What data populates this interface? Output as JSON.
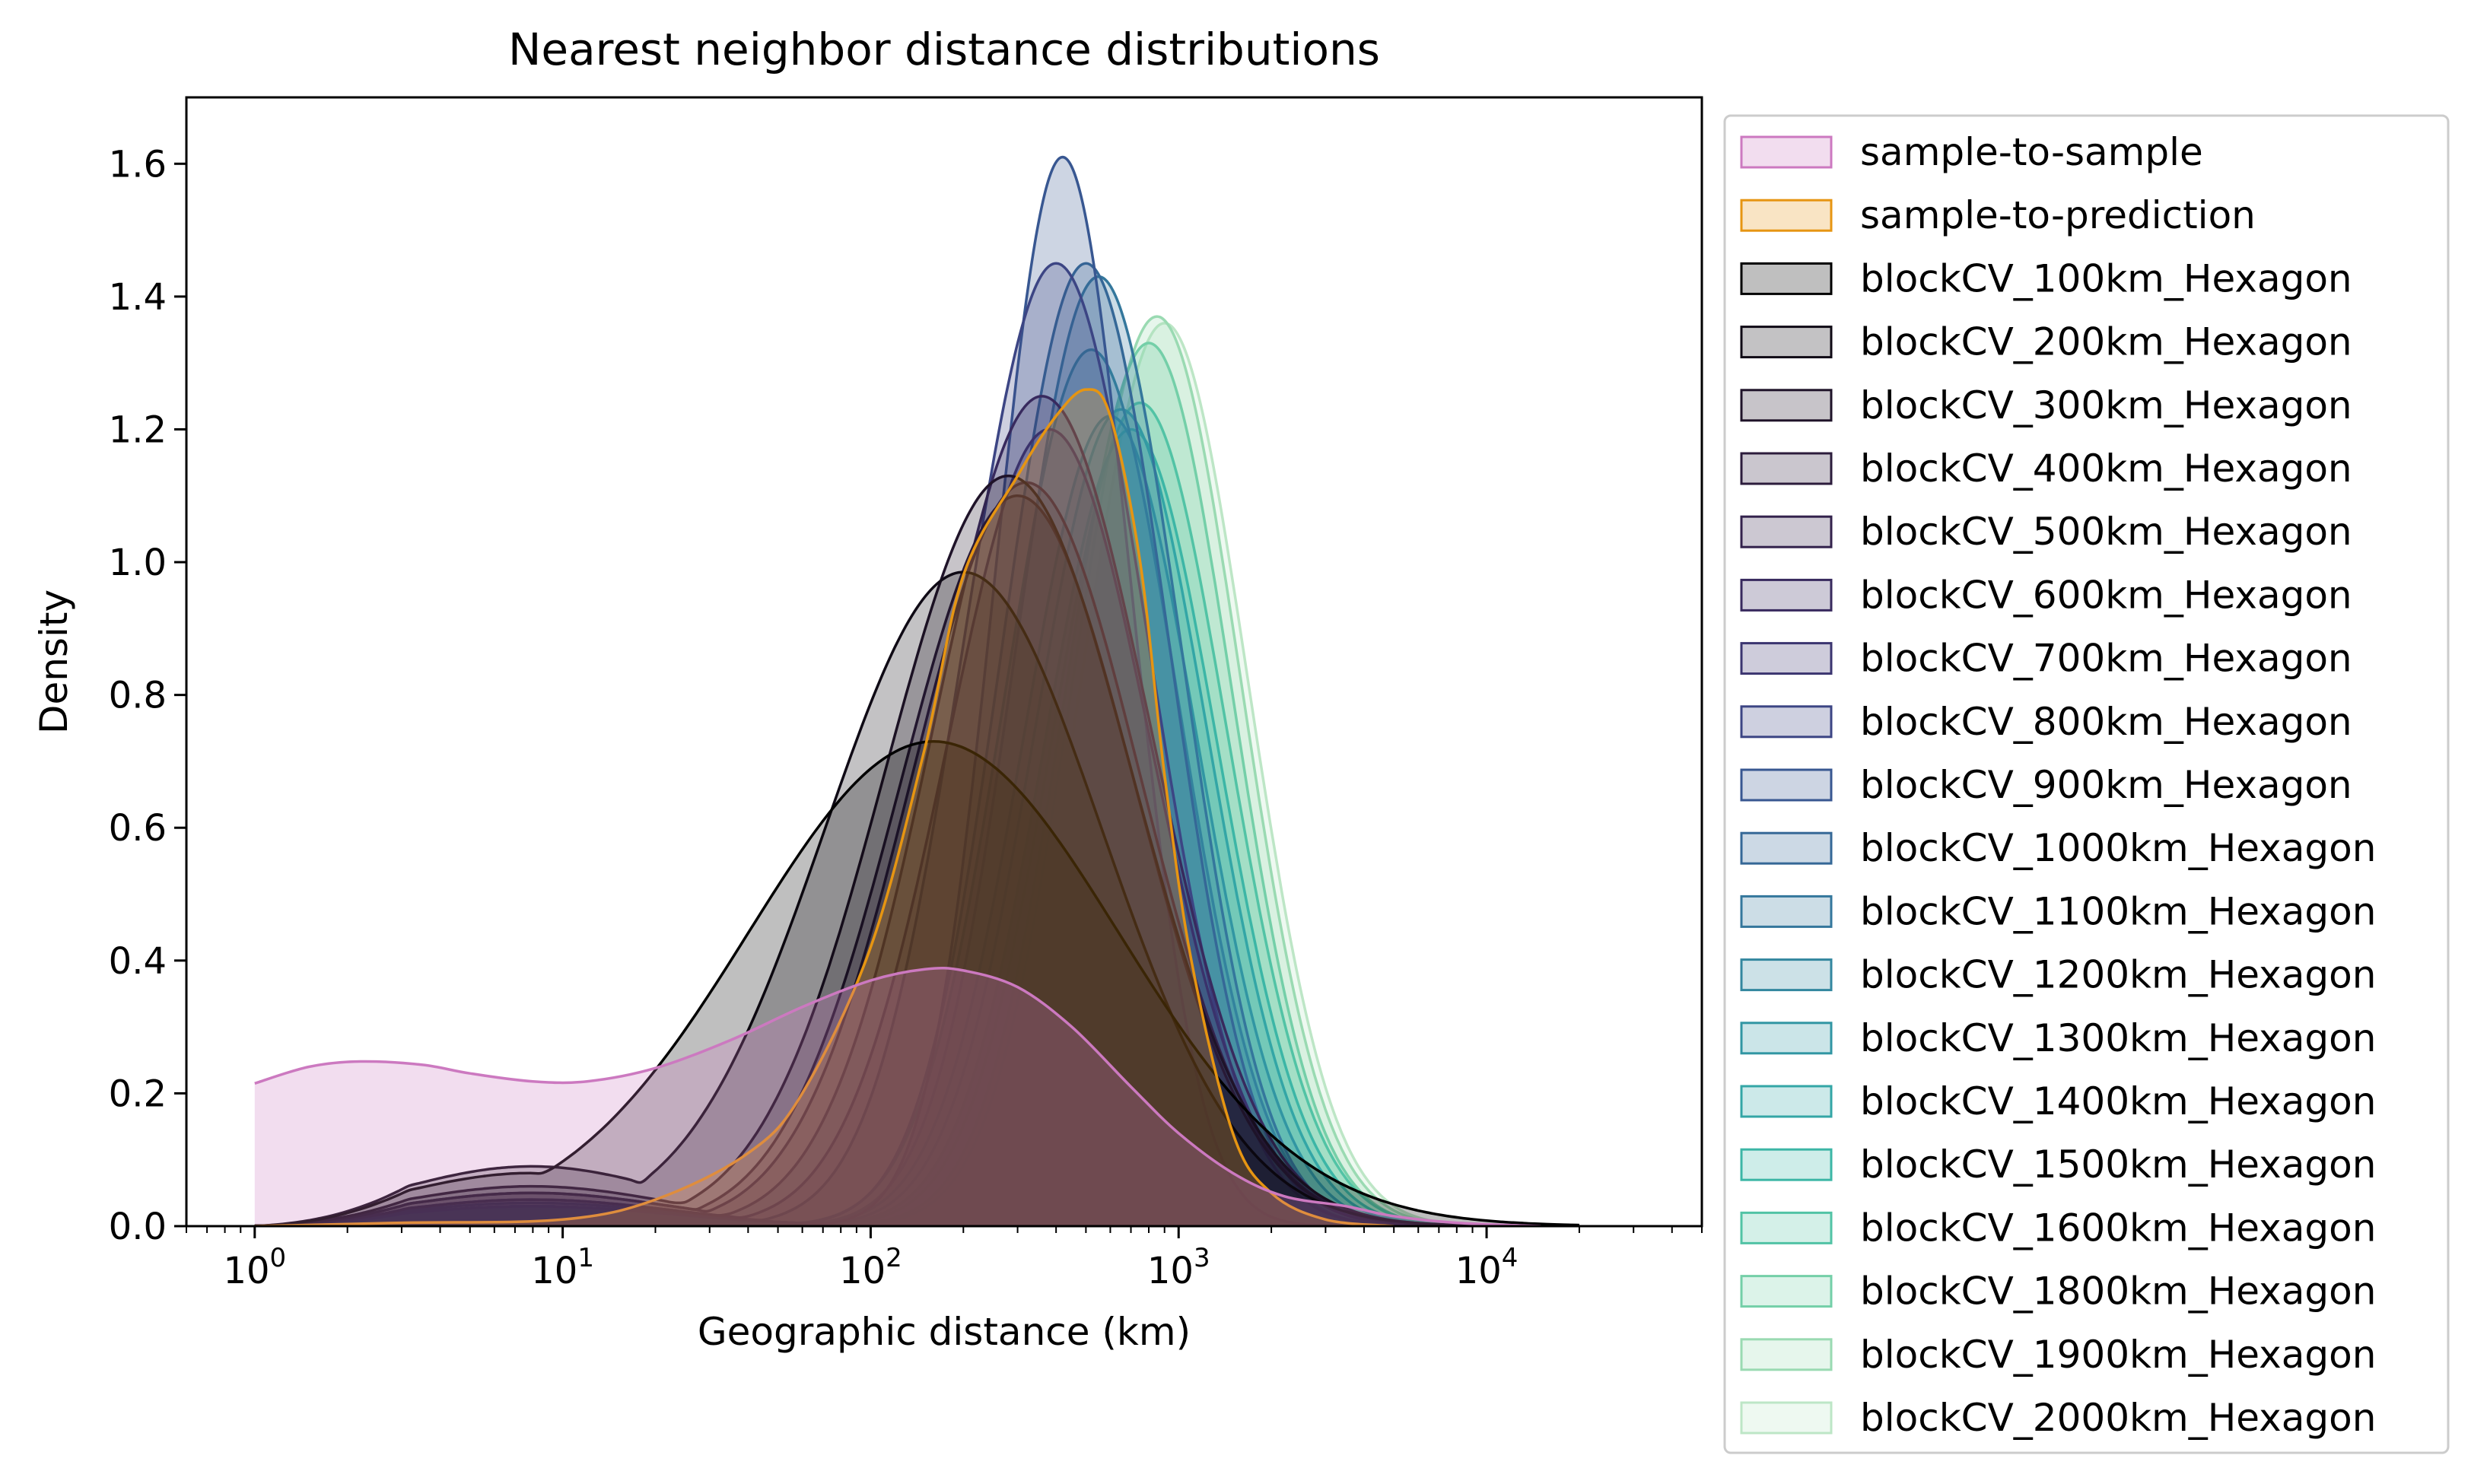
{
  "chart_data": {
    "type": "area",
    "title": "Nearest neighbor distance distributions",
    "xlabel": "Geographic distance (km)",
    "ylabel": "Density",
    "x_scale": "log",
    "xlim": [
      0.6,
      50000
    ],
    "ylim": [
      0,
      1.7
    ],
    "x_ticks": [
      {
        "value": 1,
        "base": "10",
        "exp": "0"
      },
      {
        "value": 10,
        "base": "10",
        "exp": "1"
      },
      {
        "value": 100,
        "base": "10",
        "exp": "2"
      },
      {
        "value": 1000,
        "base": "10",
        "exp": "3"
      },
      {
        "value": 10000,
        "base": "10",
        "exp": "4"
      }
    ],
    "y_ticks": [
      {
        "value": 0.0,
        "label": "0.0"
      },
      {
        "value": 0.2,
        "label": "0.2"
      },
      {
        "value": 0.4,
        "label": "0.4"
      },
      {
        "value": 0.6,
        "label": "0.6"
      },
      {
        "value": 0.8,
        "label": "0.8"
      },
      {
        "value": 1.0,
        "label": "1.0"
      },
      {
        "value": 1.2,
        "label": "1.2"
      },
      {
        "value": 1.4,
        "label": "1.4"
      },
      {
        "value": 1.6,
        "label": "1.6"
      }
    ],
    "grid": false,
    "legend_position": "outside-right",
    "series": [
      {
        "name": "sample-to-sample",
        "color": "#cc79c0",
        "fill_alpha": 0.25,
        "x": [
          1,
          1.5,
          2.2,
          3.5,
          5,
          8,
          12,
          20,
          35,
          60,
          100,
          150,
          200,
          300,
          450,
          700,
          1000,
          1500,
          2200,
          3500,
          5000,
          8000,
          15000
        ],
        "y": [
          0.215,
          0.24,
          0.248,
          0.243,
          0.23,
          0.218,
          0.218,
          0.238,
          0.28,
          0.33,
          0.37,
          0.387,
          0.385,
          0.36,
          0.3,
          0.21,
          0.14,
          0.08,
          0.045,
          0.03,
          0.015,
          0.005,
          0.0
        ]
      },
      {
        "name": "sample-to-prediction",
        "color": "#e69512",
        "fill_alpha": 0.25,
        "x": [
          1,
          3,
          10,
          20,
          40,
          60,
          100,
          150,
          200,
          300,
          400,
          500,
          600,
          750,
          900,
          1100,
          1500,
          2000,
          3000,
          5000
        ],
        "y": [
          0.0,
          0.005,
          0.01,
          0.04,
          0.11,
          0.2,
          0.42,
          0.72,
          0.98,
          1.13,
          1.22,
          1.26,
          1.22,
          1.0,
          0.68,
          0.4,
          0.14,
          0.05,
          0.01,
          0.0
        ]
      },
      {
        "name": "blockCV_100km_Hexagon",
        "color": "#000000",
        "peak_x": 160,
        "peak_y": 0.73,
        "width": 0.6,
        "tail": 0.08
      },
      {
        "name": "blockCV_200km_Hexagon",
        "color": "#0f0a15",
        "peak_x": 200,
        "peak_y": 0.985,
        "width": 0.45,
        "tail": 0.09
      },
      {
        "name": "blockCV_300km_Hexagon",
        "color": "#1f1329",
        "peak_x": 280,
        "peak_y": 1.13,
        "width": 0.4,
        "tail": 0.06
      },
      {
        "name": "blockCV_400km_Hexagon",
        "color": "#2c1c3c",
        "peak_x": 300,
        "peak_y": 1.1,
        "width": 0.38,
        "tail": 0.05
      },
      {
        "name": "blockCV_500km_Hexagon",
        "color": "#33224c",
        "peak_x": 320,
        "peak_y": 1.12,
        "width": 0.37,
        "tail": 0.05
      },
      {
        "name": "blockCV_600km_Hexagon",
        "color": "#382a5e",
        "peak_x": 360,
        "peak_y": 1.25,
        "width": 0.35,
        "tail": 0.04
      },
      {
        "name": "blockCV_700km_Hexagon",
        "color": "#3b3570",
        "peak_x": 380,
        "peak_y": 1.2,
        "width": 0.33,
        "tail": 0.04
      },
      {
        "name": "blockCV_800km_Hexagon",
        "color": "#3c4584",
        "peak_x": 400,
        "peak_y": 1.45,
        "width": 0.3,
        "tail": 0.035
      },
      {
        "name": "blockCV_900km_Hexagon",
        "color": "#385791",
        "peak_x": 420,
        "peak_y": 1.61,
        "width": 0.22,
        "tail": 0.03
      },
      {
        "name": "blockCV_1000km_Hexagon",
        "color": "#356897",
        "peak_x": 500,
        "peak_y": 1.45,
        "width": 0.27,
        "tail": 0.03
      },
      {
        "name": "blockCV_1100km_Hexagon",
        "color": "#34779c",
        "peak_x": 550,
        "peak_y": 1.43,
        "width": 0.27,
        "tail": 0.03
      },
      {
        "name": "blockCV_1200km_Hexagon",
        "color": "#33879f",
        "peak_x": 520,
        "peak_y": 1.32,
        "width": 0.28,
        "tail": 0.03
      },
      {
        "name": "blockCV_1300km_Hexagon",
        "color": "#3196a3",
        "peak_x": 600,
        "peak_y": 1.22,
        "width": 0.28,
        "tail": 0.03
      },
      {
        "name": "blockCV_1400km_Hexagon",
        "color": "#33a6a6",
        "peak_x": 650,
        "peak_y": 1.23,
        "width": 0.28,
        "tail": 0.03
      },
      {
        "name": "blockCV_1500km_Hexagon",
        "color": "#3cb6a6",
        "peak_x": 700,
        "peak_y": 1.2,
        "width": 0.28,
        "tail": 0.03
      },
      {
        "name": "blockCV_1600km_Hexagon",
        "color": "#52c3a5",
        "peak_x": 750,
        "peak_y": 1.24,
        "width": 0.28,
        "tail": 0.03
      },
      {
        "name": "blockCV_1800km_Hexagon",
        "color": "#74cfa8",
        "peak_x": 800,
        "peak_y": 1.33,
        "width": 0.27,
        "tail": 0.03
      },
      {
        "name": "blockCV_1900km_Hexagon",
        "color": "#9adab2",
        "peak_x": 850,
        "peak_y": 1.37,
        "width": 0.27,
        "tail": 0.03
      },
      {
        "name": "blockCV_2000km_Hexagon",
        "color": "#bde6c6",
        "peak_x": 900,
        "peak_y": 1.36,
        "width": 0.27,
        "tail": 0.03
      }
    ]
  }
}
